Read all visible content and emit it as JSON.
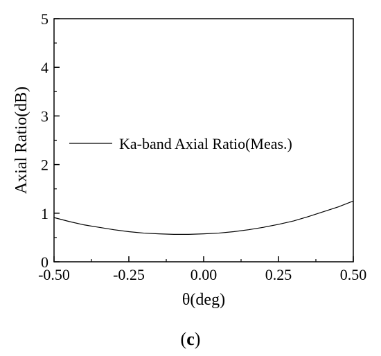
{
  "chart_data": {
    "type": "line",
    "title": "",
    "xlabel": "θ(deg)",
    "ylabel": "Axial Ratio(dB)",
    "xlim": [
      -0.5,
      0.5
    ],
    "ylim": [
      0,
      5
    ],
    "x_ticks": [
      -0.5,
      -0.25,
      0.0,
      0.25,
      0.5
    ],
    "x_tick_labels": [
      "-0.50",
      "-0.25",
      "0.00",
      "0.25",
      "0.50"
    ],
    "y_ticks": [
      0,
      1,
      2,
      3,
      4,
      5
    ],
    "y_tick_labels": [
      "0",
      "1",
      "2",
      "3",
      "4",
      "5"
    ],
    "grid": false,
    "legend_placement": "middle-left",
    "series": [
      {
        "name": "Ka-band Axial Ratio(Meas.)",
        "color": "#000000",
        "x": [
          -0.5,
          -0.45,
          -0.4,
          -0.35,
          -0.3,
          -0.25,
          -0.2,
          -0.15,
          -0.1,
          -0.05,
          0.0,
          0.05,
          0.1,
          0.15,
          0.2,
          0.25,
          0.3,
          0.35,
          0.4,
          0.45,
          0.5
        ],
        "y": [
          0.91,
          0.83,
          0.76,
          0.71,
          0.66,
          0.62,
          0.59,
          0.575,
          0.565,
          0.565,
          0.575,
          0.59,
          0.62,
          0.66,
          0.71,
          0.77,
          0.84,
          0.93,
          1.03,
          1.13,
          1.25
        ]
      }
    ]
  },
  "caption": {
    "open": "(",
    "letter": "c",
    "close": ")"
  }
}
